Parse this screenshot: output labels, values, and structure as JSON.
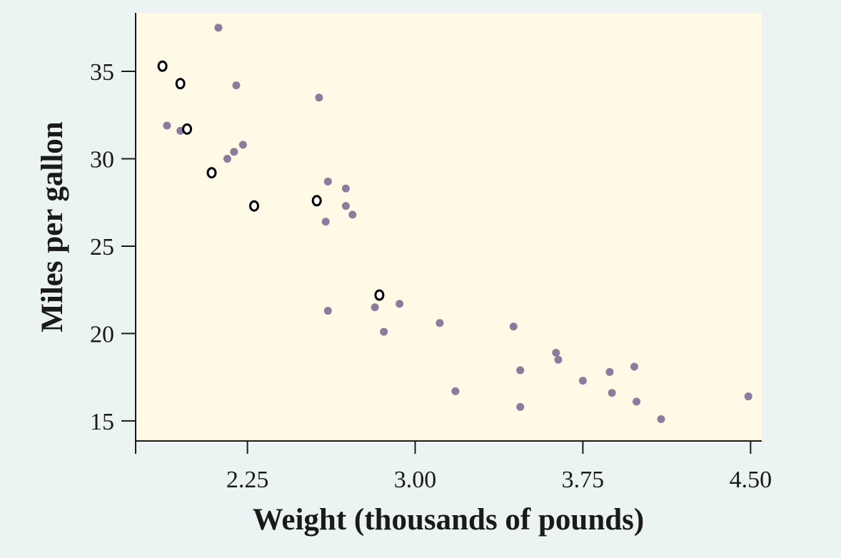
{
  "chart_data": {
    "type": "scatter",
    "xlabel": "Weight (thousands of pounds)",
    "ylabel": "Miles per gallon",
    "xlim": [
      1.75,
      4.55
    ],
    "ylim": [
      13.85,
      38.35
    ],
    "xticks": [
      2.25,
      3.0,
      3.75,
      4.5
    ],
    "xtick_labels": [
      "2.25",
      "3.00",
      "3.75",
      "4.50"
    ],
    "yticks": [
      15,
      20,
      25,
      30,
      35
    ],
    "ytick_labels": [
      "15",
      "20",
      "25",
      "30",
      "35"
    ],
    "grid": false,
    "colors": {
      "plot_background": "#fefae6",
      "page_background": "#ebf4f2",
      "filled_point": "#8e7a9c",
      "open_point": "#000000",
      "axis": "#1a1a1a"
    },
    "series": [
      {
        "marker": "filled",
        "points": [
          [
            2.12,
            37.5
          ],
          [
            2.2,
            34.2
          ],
          [
            2.57,
            33.5
          ],
          [
            1.89,
            31.9
          ],
          [
            1.95,
            31.6
          ],
          [
            2.23,
            30.8
          ],
          [
            2.19,
            30.4
          ],
          [
            2.16,
            30.0
          ],
          [
            2.61,
            28.7
          ],
          [
            2.69,
            28.3
          ],
          [
            2.69,
            27.3
          ],
          [
            2.72,
            26.8
          ],
          [
            2.6,
            26.4
          ],
          [
            2.61,
            21.3
          ],
          [
            2.82,
            21.5
          ],
          [
            2.93,
            21.7
          ],
          [
            2.86,
            20.1
          ],
          [
            3.11,
            20.6
          ],
          [
            3.44,
            20.4
          ],
          [
            3.63,
            18.9
          ],
          [
            3.64,
            18.5
          ],
          [
            3.47,
            17.9
          ],
          [
            3.75,
            17.3
          ],
          [
            3.87,
            17.8
          ],
          [
            3.98,
            18.1
          ],
          [
            3.88,
            16.6
          ],
          [
            3.99,
            16.1
          ],
          [
            3.18,
            16.7
          ],
          [
            3.47,
            15.8
          ],
          [
            4.1,
            15.1
          ],
          [
            4.49,
            16.4
          ]
        ]
      },
      {
        "marker": "open",
        "points": [
          [
            1.87,
            35.3
          ],
          [
            1.95,
            34.3
          ],
          [
            1.98,
            31.7
          ],
          [
            2.09,
            29.2
          ],
          [
            2.28,
            27.3
          ],
          [
            2.56,
            27.6
          ],
          [
            2.84,
            22.2
          ]
        ]
      }
    ]
  }
}
